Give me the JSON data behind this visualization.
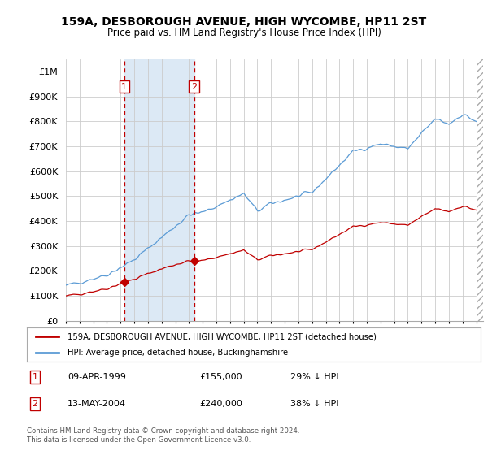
{
  "title_line1": "159A, DESBOROUGH AVENUE, HIGH WYCOMBE, HP11 2ST",
  "title_line2": "Price paid vs. HM Land Registry's House Price Index (HPI)",
  "ylim": [
    0,
    1050000
  ],
  "yticks": [
    0,
    100000,
    200000,
    300000,
    400000,
    500000,
    600000,
    700000,
    800000,
    900000,
    1000000
  ],
  "ytick_labels": [
    "£0",
    "£100K",
    "£200K",
    "£300K",
    "£400K",
    "£500K",
    "£600K",
    "£700K",
    "£800K",
    "£900K",
    "£1M"
  ],
  "hpi_color": "#5b9bd5",
  "price_color": "#c00000",
  "vline_color": "#c00000",
  "shade_color": "#dce9f5",
  "background_color": "#ffffff",
  "grid_color": "#cccccc",
  "sale1_x": 1999.27,
  "sale1_price": 155000,
  "sale2_x": 2004.37,
  "sale2_price": 240000,
  "legend_entry1": "159A, DESBOROUGH AVENUE, HIGH WYCOMBE, HP11 2ST (detached house)",
  "legend_entry2": "HPI: Average price, detached house, Buckinghamshire",
  "footer_line1": "Contains HM Land Registry data © Crown copyright and database right 2024.",
  "footer_line2": "This data is licensed under the Open Government Licence v3.0."
}
